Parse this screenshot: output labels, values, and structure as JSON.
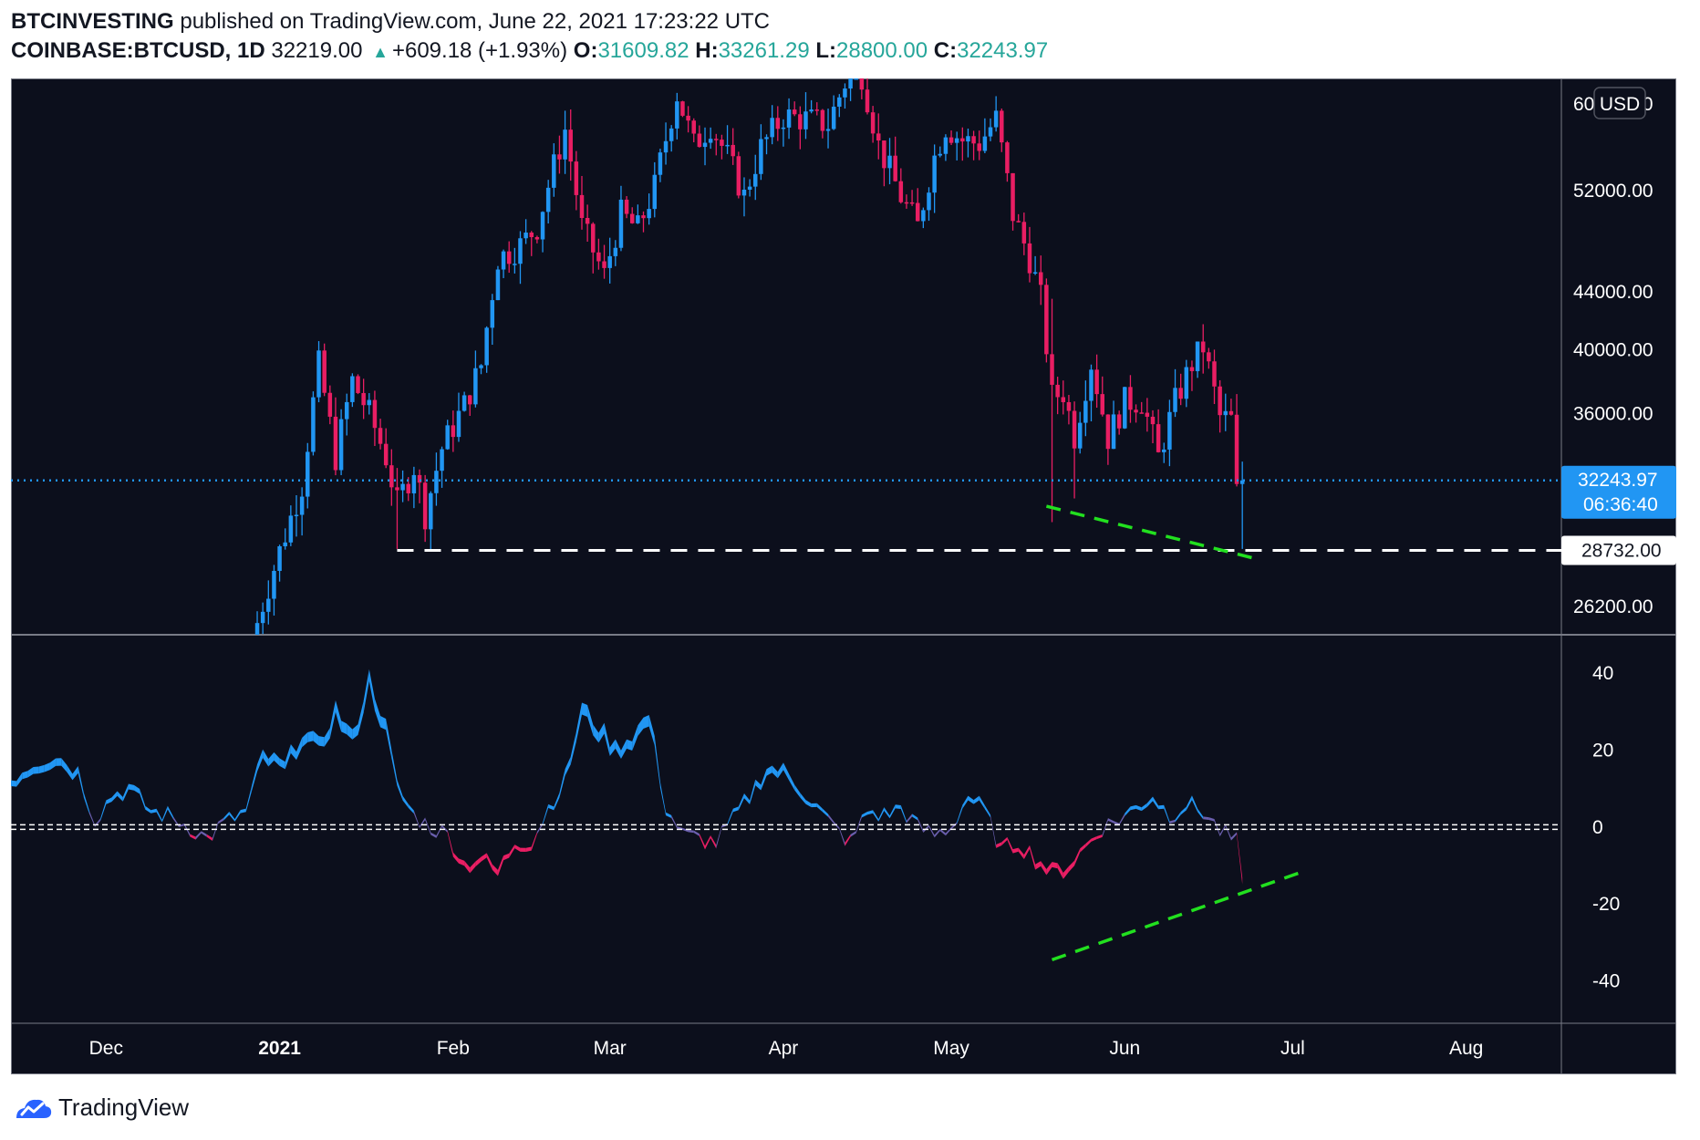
{
  "header": {
    "author": "BTCINVESTING",
    "published": "published on TradingView.com, June 22, 2021 17:23:22 UTC",
    "symbol": "COINBASE:BTCUSD, 1D",
    "last": "32219.00",
    "change": "+609.18 (+1.93%)",
    "o_label": "O:",
    "o": "31609.82",
    "h_label": "H:",
    "h": "33261.29",
    "l_label": "L:",
    "l": "28800.00",
    "c_label": "C:",
    "c": "32243.97"
  },
  "footer": {
    "brand": "TradingView"
  },
  "colors": {
    "background": "#0c0f1c",
    "up": "#2196f3",
    "down": "#e91e63",
    "price_line": "#2196f3",
    "support_line": "#ffffff",
    "trend_line": "#22e01f",
    "axis_text": "#ffffff",
    "grid_border": "#787b86"
  },
  "chart_data": [
    {
      "type": "candlestick",
      "scale": "log",
      "currency": "USD",
      "ylim": [
        25000,
        62000
      ],
      "yticks": [
        "60000.00",
        "52000.00",
        "44000.00",
        "40000.00",
        "36000.00",
        "26200.00"
      ],
      "ytick_values": [
        60000,
        52000,
        44000,
        40000,
        36000,
        26200
      ],
      "xlabels": [
        "Dec",
        "2021",
        "Feb",
        "Mar",
        "Apr",
        "May",
        "Jun",
        "Jul",
        "Aug"
      ],
      "xlabel_dates": [
        "2020-12-01",
        "2021-01-01",
        "2021-02-01",
        "2021-03-01",
        "2021-04-01",
        "2021-05-01",
        "2021-06-01",
        "2021-07-01",
        "2021-08-01"
      ],
      "x_range": [
        "2020-11-14",
        "2021-08-18"
      ],
      "close_anchors": [
        [
          "2020-12-28",
          25500
        ],
        [
          "2021-01-02",
          29500
        ],
        [
          "2021-01-05",
          32000
        ],
        [
          "2021-01-08",
          39000
        ],
        [
          "2021-01-11",
          33500
        ],
        [
          "2021-01-14",
          38000
        ],
        [
          "2021-01-17",
          36000
        ],
        [
          "2021-01-20",
          33500
        ],
        [
          "2021-01-22",
          31000
        ],
        [
          "2021-01-25",
          33000
        ],
        [
          "2021-01-27",
          30500
        ],
        [
          "2021-01-30",
          34000
        ],
        [
          "2021-02-03",
          36500
        ],
        [
          "2021-02-06",
          39000
        ],
        [
          "2021-02-09",
          46500
        ],
        [
          "2021-02-13",
          47500
        ],
        [
          "2021-02-16",
          49000
        ],
        [
          "2021-02-21",
          57500
        ],
        [
          "2021-02-24",
          49000
        ],
        [
          "2021-02-28",
          45200
        ],
        [
          "2021-03-03",
          50000
        ],
        [
          "2021-03-06",
          48800
        ],
        [
          "2021-03-09",
          52300
        ],
        [
          "2021-03-13",
          61000
        ],
        [
          "2021-03-16",
          56000
        ],
        [
          "2021-03-19",
          58000
        ],
        [
          "2021-03-22",
          55000
        ],
        [
          "2021-03-25",
          51500
        ],
        [
          "2021-03-28",
          55800
        ],
        [
          "2021-04-01",
          58800
        ],
        [
          "2021-04-05",
          58500
        ],
        [
          "2021-04-09",
          58000
        ],
        [
          "2021-04-13",
          63500
        ],
        [
          "2021-04-15",
          63000
        ],
        [
          "2021-04-18",
          56000
        ],
        [
          "2021-04-22",
          51500
        ],
        [
          "2021-04-25",
          49000
        ],
        [
          "2021-04-28",
          55000
        ],
        [
          "2021-04-30",
          57800
        ],
        [
          "2021-05-03",
          56500
        ],
        [
          "2021-05-06",
          56200
        ],
        [
          "2021-05-09",
          58500
        ],
        [
          "2021-05-12",
          50000
        ],
        [
          "2021-05-15",
          46500
        ],
        [
          "2021-05-17",
          43500
        ],
        [
          "2021-05-19",
          37000
        ],
        [
          "2021-05-21",
          37300
        ],
        [
          "2021-05-23",
          34700
        ],
        [
          "2021-05-26",
          39200
        ],
        [
          "2021-05-29",
          34600
        ],
        [
          "2021-06-01",
          36700
        ],
        [
          "2021-06-04",
          36800
        ],
        [
          "2021-06-07",
          33500
        ],
        [
          "2021-06-10",
          36700
        ],
        [
          "2021-06-13",
          39100
        ],
        [
          "2021-06-15",
          40200
        ],
        [
          "2021-06-18",
          35800
        ],
        [
          "2021-06-20",
          35600
        ],
        [
          "2021-06-21",
          31600
        ],
        [
          "2021-06-22",
          32244
        ]
      ],
      "last_price": 32243.97,
      "last_price_label": "32243.97",
      "countdown": "06:36:40",
      "support_level": 28732.0,
      "support_label": "28732.00",
      "support_start": "2021-01-22",
      "trend_line": [
        [
          "2021-05-18",
          30900
        ],
        [
          "2021-06-25",
          28300
        ]
      ]
    },
    {
      "type": "area-oscillator",
      "ylim": [
        -51,
        50
      ],
      "yticks": [
        "40",
        "20",
        "0",
        "-20",
        "-40"
      ],
      "ytick_values": [
        40,
        20,
        0,
        -20,
        -40
      ],
      "zero_line": 0,
      "value_anchors": [
        [
          "2020-11-14",
          12
        ],
        [
          "2020-11-18",
          16
        ],
        [
          "2020-11-22",
          18
        ],
        [
          "2020-11-26",
          14
        ],
        [
          "2020-11-29",
          2
        ],
        [
          "2020-12-02",
          8
        ],
        [
          "2020-12-05",
          10
        ],
        [
          "2020-12-09",
          4
        ],
        [
          "2020-12-12",
          3
        ],
        [
          "2020-12-16",
          0
        ],
        [
          "2020-12-19",
          -3
        ],
        [
          "2020-12-22",
          1
        ],
        [
          "2020-12-26",
          4
        ],
        [
          "2020-12-29",
          18
        ],
        [
          "2021-01-02",
          15
        ],
        [
          "2021-01-05",
          24
        ],
        [
          "2021-01-08",
          20
        ],
        [
          "2021-01-11",
          30
        ],
        [
          "2021-01-14",
          22
        ],
        [
          "2021-01-17",
          38
        ],
        [
          "2021-01-20",
          25
        ],
        [
          "2021-01-22",
          10
        ],
        [
          "2021-01-25",
          3
        ],
        [
          "2021-01-28",
          0
        ],
        [
          "2021-01-31",
          -2
        ],
        [
          "2021-02-03",
          -10
        ],
        [
          "2021-02-06",
          -8
        ],
        [
          "2021-02-09",
          -12
        ],
        [
          "2021-02-12",
          -4
        ],
        [
          "2021-02-15",
          -4
        ],
        [
          "2021-02-18",
          5
        ],
        [
          "2021-02-21",
          12
        ],
        [
          "2021-02-24",
          30
        ],
        [
          "2021-02-27",
          25
        ],
        [
          "2021-03-02",
          20
        ],
        [
          "2021-03-05",
          23
        ],
        [
          "2021-03-08",
          28
        ],
        [
          "2021-03-11",
          5
        ],
        [
          "2021-03-14",
          -2
        ],
        [
          "2021-03-17",
          -3
        ],
        [
          "2021-03-20",
          -4
        ],
        [
          "2021-03-23",
          2
        ],
        [
          "2021-03-26",
          8
        ],
        [
          "2021-03-29",
          15
        ],
        [
          "2021-04-01",
          14
        ],
        [
          "2021-04-04",
          10
        ],
        [
          "2021-04-07",
          5
        ],
        [
          "2021-04-10",
          0
        ],
        [
          "2021-04-13",
          -4
        ],
        [
          "2021-04-16",
          4
        ],
        [
          "2021-04-19",
          3
        ],
        [
          "2021-04-22",
          5
        ],
        [
          "2021-04-25",
          0
        ],
        [
          "2021-04-28",
          -2
        ],
        [
          "2021-05-01",
          0
        ],
        [
          "2021-05-04",
          8
        ],
        [
          "2021-05-07",
          4
        ],
        [
          "2021-05-10",
          -6
        ],
        [
          "2021-05-13",
          -4
        ],
        [
          "2021-05-16",
          -8
        ],
        [
          "2021-05-19",
          -12
        ],
        [
          "2021-05-22",
          -10
        ],
        [
          "2021-05-25",
          -5
        ],
        [
          "2021-05-28",
          0
        ],
        [
          "2021-05-31",
          2
        ],
        [
          "2021-06-03",
          5
        ],
        [
          "2021-06-06",
          8
        ],
        [
          "2021-06-09",
          3
        ],
        [
          "2021-06-12",
          6
        ],
        [
          "2021-06-15",
          4
        ],
        [
          "2021-06-18",
          -1
        ],
        [
          "2021-06-21",
          -4
        ],
        [
          "2021-06-22",
          -14
        ]
      ],
      "trend_line": [
        [
          "2021-05-19",
          -34.5
        ],
        [
          "2021-07-02",
          -12
        ]
      ]
    }
  ]
}
